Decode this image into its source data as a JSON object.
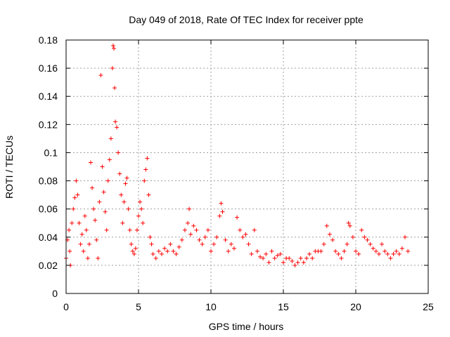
{
  "chart_data": {
    "type": "scatter",
    "title": "Day 049 of 2018, Rate Of TEC Index for receiver ppte",
    "xlabel": "GPS time / hours",
    "ylabel": "ROTI / TECUs",
    "xlim": [
      0,
      25
    ],
    "ylim": [
      0,
      0.18
    ],
    "xticks": [
      0,
      5,
      10,
      15,
      20,
      25
    ],
    "xtick_labels": [
      "0",
      "5",
      "10",
      "15",
      "20",
      "25"
    ],
    "yticks": [
      0,
      0.02,
      0.04,
      0.06,
      0.08,
      0.1,
      0.12,
      0.14,
      0.16,
      0.18
    ],
    "ytick_labels": [
      "0",
      "0.02",
      "0.04",
      "0.06",
      "0.08",
      "0.1",
      "0.12",
      "0.14",
      "0.16",
      "0.18"
    ],
    "grid": true,
    "marker": "+",
    "marker_color": "#ff0000",
    "series": [
      {
        "name": "ROTI",
        "x": [
          0.0,
          0.1,
          0.2,
          0.25,
          0.3,
          0.4,
          0.5,
          0.6,
          0.7,
          0.8,
          0.9,
          1.0,
          1.1,
          1.2,
          1.3,
          1.4,
          1.5,
          1.6,
          1.7,
          1.8,
          1.9,
          2.0,
          2.1,
          2.2,
          2.3,
          2.4,
          2.5,
          2.6,
          2.7,
          2.8,
          2.9,
          3.0,
          3.1,
          3.2,
          3.25,
          3.3,
          3.35,
          3.4,
          3.5,
          3.6,
          3.7,
          3.8,
          3.9,
          4.0,
          4.1,
          4.2,
          4.3,
          4.4,
          4.5,
          4.6,
          4.7,
          4.8,
          4.9,
          5.0,
          5.1,
          5.2,
          5.3,
          5.4,
          5.5,
          5.6,
          5.7,
          5.8,
          5.9,
          6.0,
          6.2,
          6.4,
          6.6,
          6.8,
          7.0,
          7.2,
          7.4,
          7.6,
          7.8,
          8.0,
          8.2,
          8.4,
          8.5,
          8.6,
          8.8,
          9.0,
          9.2,
          9.4,
          9.6,
          9.8,
          10.0,
          10.2,
          10.4,
          10.6,
          10.7,
          10.8,
          11.0,
          11.2,
          11.4,
          11.6,
          11.8,
          12.0,
          12.2,
          12.4,
          12.6,
          12.8,
          13.0,
          13.2,
          13.4,
          13.6,
          13.8,
          14.0,
          14.2,
          14.4,
          14.6,
          14.8,
          15.0,
          15.2,
          15.4,
          15.6,
          15.8,
          16.0,
          16.2,
          16.4,
          16.6,
          16.8,
          17.0,
          17.2,
          17.4,
          17.6,
          17.8,
          18.0,
          18.2,
          18.4,
          18.6,
          18.8,
          19.0,
          19.2,
          19.4,
          19.5,
          19.6,
          19.8,
          20.0,
          20.2,
          20.4,
          20.6,
          20.8,
          21.0,
          21.2,
          21.4,
          21.6,
          21.8,
          22.0,
          22.2,
          22.4,
          22.6,
          22.8,
          23.0,
          23.2,
          23.4,
          23.6
        ],
        "y": [
          0.025,
          0.038,
          0.045,
          0.03,
          0.02,
          0.05,
          0.06,
          0.068,
          0.08,
          0.07,
          0.05,
          0.035,
          0.042,
          0.03,
          0.055,
          0.045,
          0.025,
          0.035,
          0.093,
          0.075,
          0.06,
          0.052,
          0.038,
          0.025,
          0.065,
          0.155,
          0.09,
          0.072,
          0.058,
          0.045,
          0.08,
          0.095,
          0.11,
          0.16,
          0.176,
          0.174,
          0.146,
          0.122,
          0.118,
          0.1,
          0.085,
          0.07,
          0.05,
          0.065,
          0.078,
          0.082,
          0.06,
          0.045,
          0.035,
          0.03,
          0.028,
          0.032,
          0.045,
          0.055,
          0.065,
          0.06,
          0.05,
          0.08,
          0.088,
          0.096,
          0.07,
          0.04,
          0.035,
          0.028,
          0.025,
          0.03,
          0.028,
          0.032,
          0.03,
          0.035,
          0.03,
          0.028,
          0.033,
          0.038,
          0.045,
          0.05,
          0.06,
          0.042,
          0.048,
          0.045,
          0.038,
          0.035,
          0.04,
          0.045,
          0.03,
          0.035,
          0.04,
          0.055,
          0.064,
          0.058,
          0.038,
          0.03,
          0.035,
          0.032,
          0.054,
          0.045,
          0.04,
          0.042,
          0.035,
          0.028,
          0.045,
          0.03,
          0.026,
          0.025,
          0.028,
          0.022,
          0.03,
          0.025,
          0.027,
          0.028,
          0.022,
          0.025,
          0.025,
          0.023,
          0.02,
          0.022,
          0.025,
          0.022,
          0.025,
          0.028,
          0.025,
          0.03,
          0.03,
          0.03,
          0.035,
          0.048,
          0.042,
          0.038,
          0.03,
          0.028,
          0.025,
          0.03,
          0.035,
          0.05,
          0.048,
          0.04,
          0.03,
          0.028,
          0.045,
          0.04,
          0.038,
          0.035,
          0.032,
          0.03,
          0.028,
          0.035,
          0.03,
          0.028,
          0.025,
          0.028,
          0.03,
          0.028,
          0.032,
          0.04,
          0.03
        ]
      }
    ]
  }
}
